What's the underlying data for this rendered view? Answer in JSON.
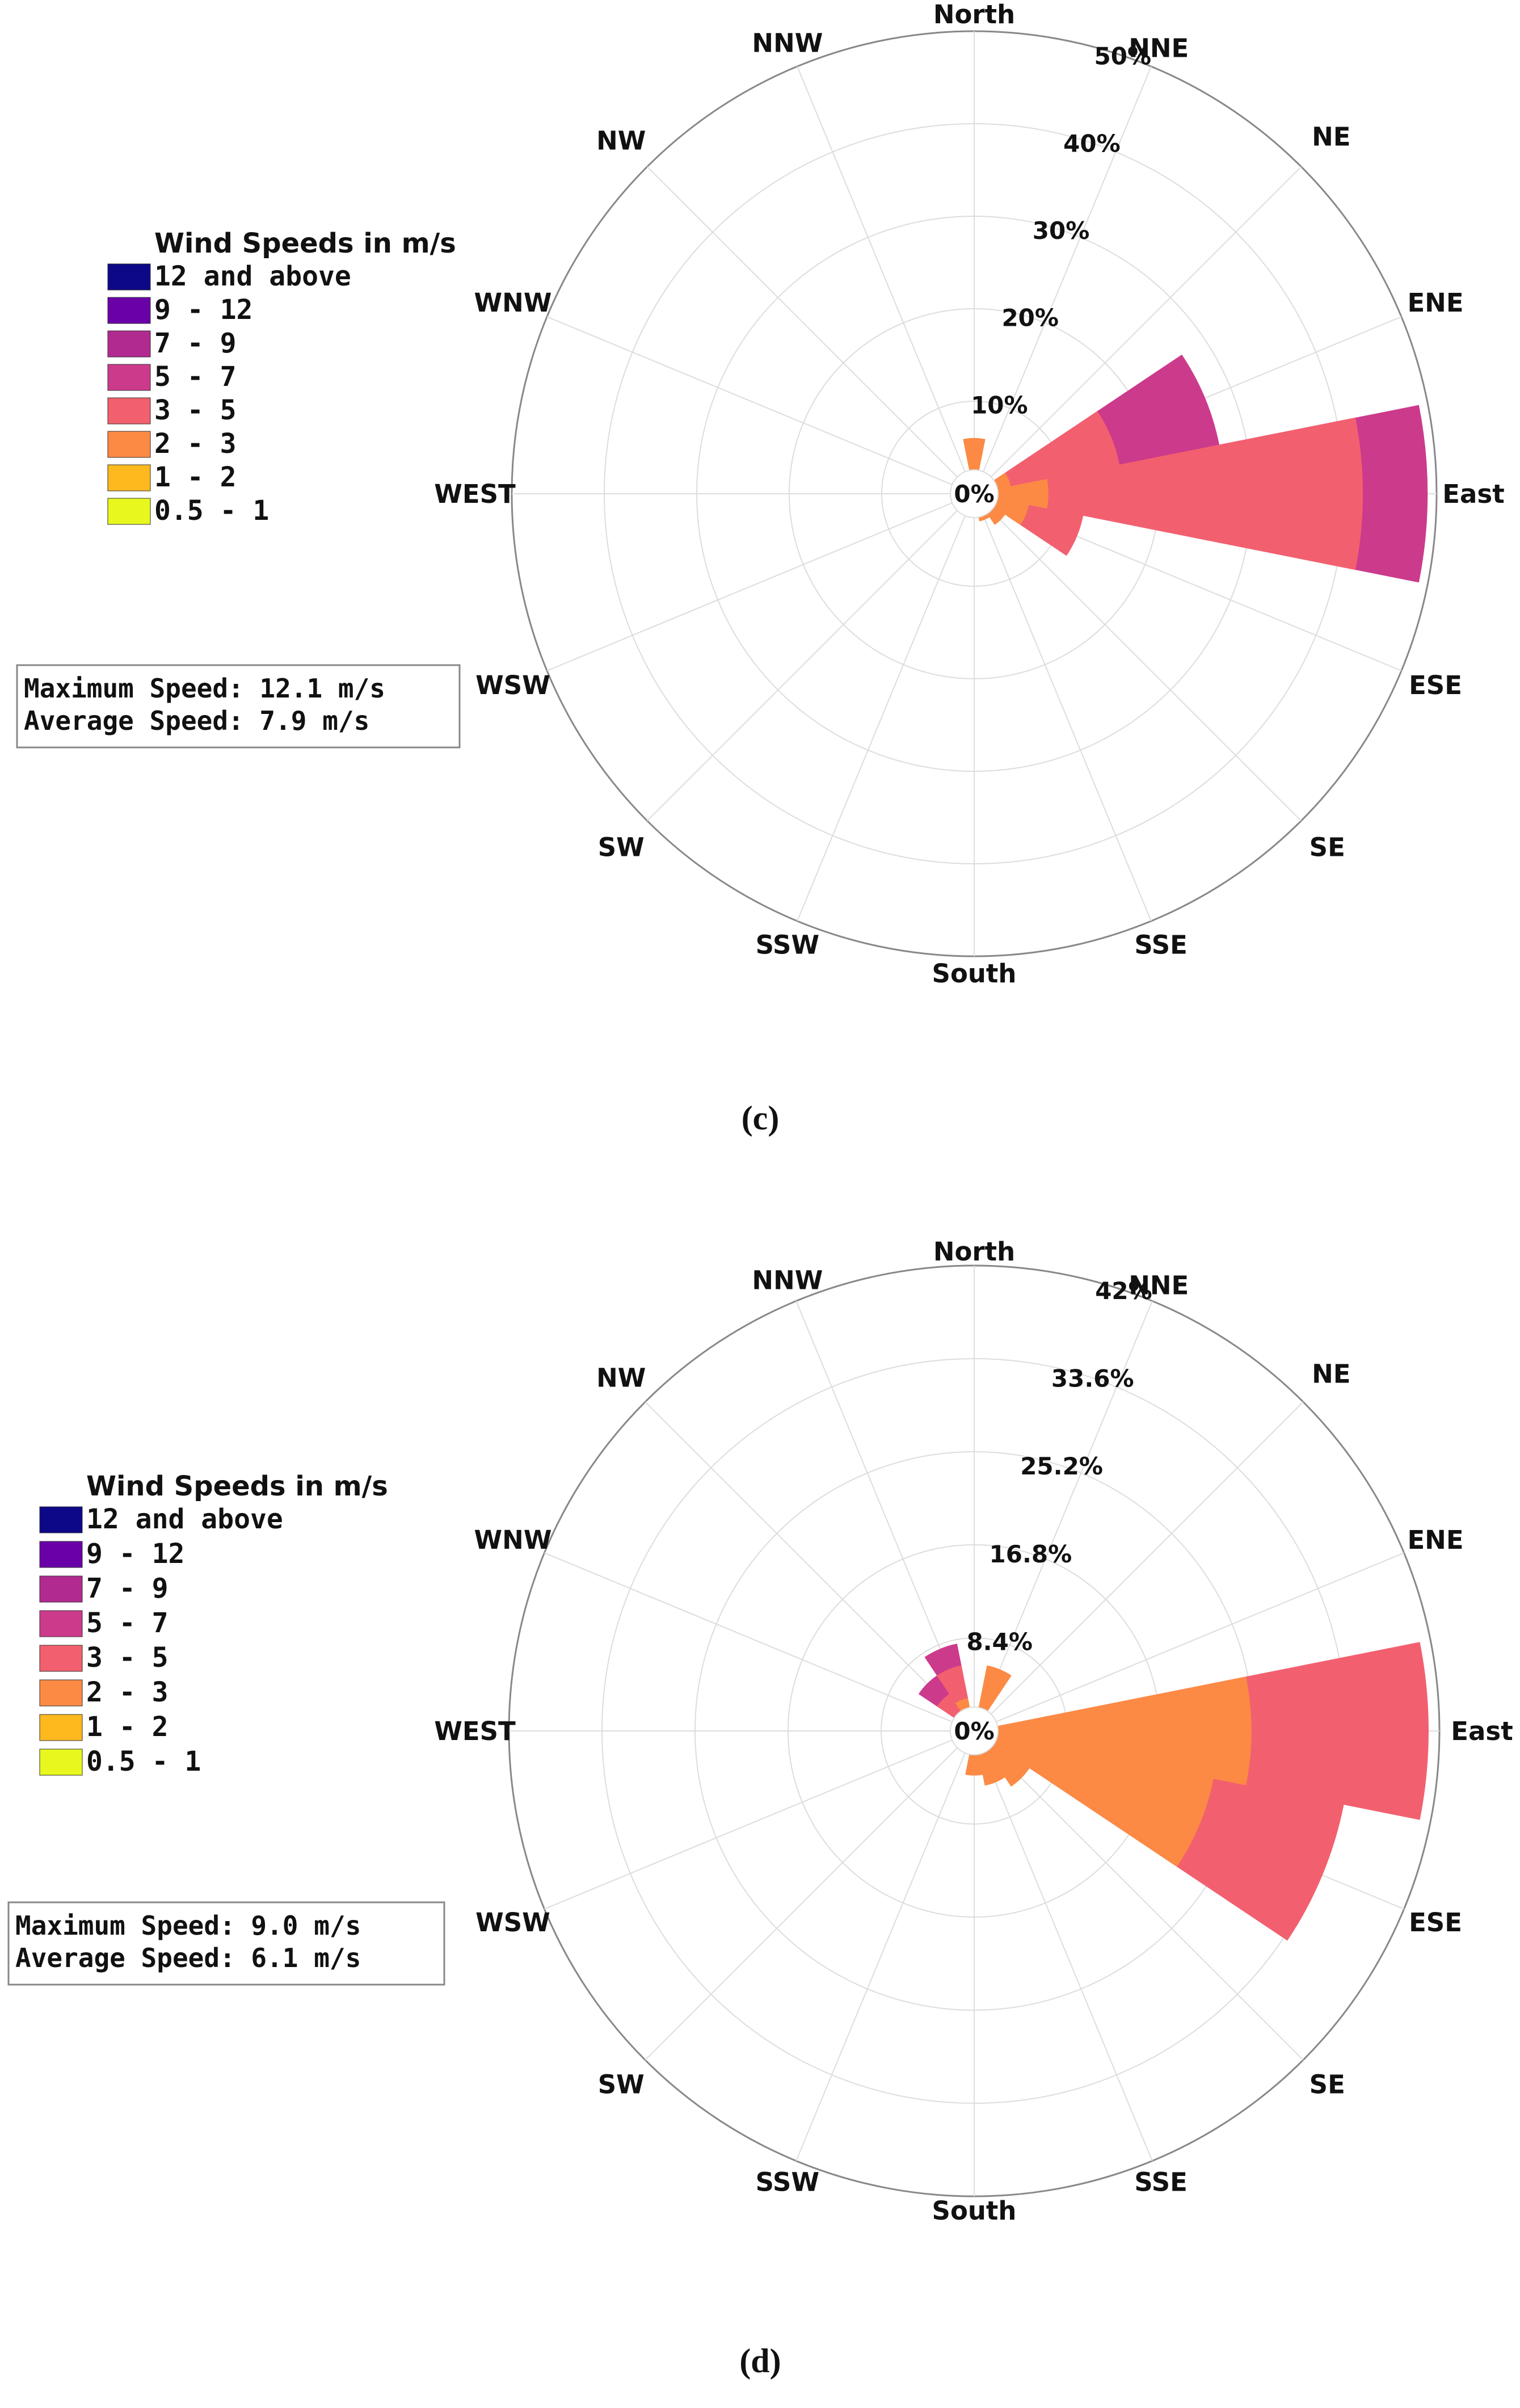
{
  "colors": {
    "12 and above": "#0d0887",
    "9 - 12": "#6a00a8",
    "7 - 9": "#b12a90",
    "5 - 7": "#cc3a8c",
    "3 - 5": "#f2606f",
    "2 - 3": "#fc8a44",
    "1 - 2": "#fdb91e",
    "0.5 - 1": "#e8f81e"
  },
  "chart_data": [
    {
      "type": "windrose",
      "panel_label": "(c)",
      "legend_title": "Wind Speeds in m/s",
      "legend_items": [
        "12 and above",
        "9 - 12",
        "7 - 9",
        "5 - 7",
        "3 - 5",
        "2 - 3",
        "1 - 2",
        "0.5 - 1"
      ],
      "stats": [
        "Maximum Speed: 12.1 m/s",
        "Average Speed: 7.9 m/s"
      ],
      "directions": [
        "North",
        "NNE",
        "NE",
        "ENE",
        "East",
        "ESE",
        "SE",
        "SSE",
        "South",
        "SSW",
        "SW",
        "WSW",
        "WEST",
        "WNW",
        "NW",
        "NNW"
      ],
      "rmax": 50,
      "rings": [
        10,
        20,
        30,
        40,
        50
      ],
      "ring_labels": [
        "10%",
        "20%",
        "30%",
        "40%",
        "50%"
      ],
      "center_label": "0%",
      "series": [
        {
          "name": "2 - 3",
          "values": [
            6,
            0,
            2,
            4,
            8,
            6,
            4,
            3,
            2,
            0,
            0,
            0,
            0,
            0,
            0,
            0
          ]
        },
        {
          "name": "3 - 5",
          "values": [
            0,
            0,
            0,
            16,
            42,
            12,
            0,
            0,
            0,
            0,
            0,
            0,
            0,
            0,
            0,
            0
          ]
        },
        {
          "name": "5 - 7",
          "values": [
            0,
            0,
            0,
            27,
            49,
            0,
            0,
            0,
            0,
            0,
            0,
            0,
            0,
            0,
            0,
            0
          ]
        }
      ]
    },
    {
      "type": "windrose",
      "panel_label": "(d)",
      "legend_title": "Wind Speeds in m/s",
      "legend_items": [
        "12 and above",
        "9 - 12",
        "7 - 9",
        "5 - 7",
        "3 - 5",
        "2 - 3",
        "1 - 2",
        "0.5 - 1"
      ],
      "stats": [
        "Maximum Speed: 9.0 m/s",
        "Average Speed: 6.1 m/s"
      ],
      "directions": [
        "North",
        "NNE",
        "NE",
        "ENE",
        "East",
        "ESE",
        "SE",
        "SSE",
        "South",
        "SSW",
        "SW",
        "WSW",
        "WEST",
        "WNW",
        "NW",
        "NNW"
      ],
      "rmax": 42,
      "rings": [
        8.4,
        16.8,
        25.2,
        33.6,
        42
      ],
      "ring_labels": [
        "8.4%",
        "16.8%",
        "25.2%",
        "33.6%",
        "42%"
      ],
      "center_label": "0%",
      "series": [
        {
          "name": "2 - 3",
          "values": [
            0,
            6,
            0,
            2,
            25,
            22,
            6,
            5,
            4,
            0,
            0,
            0,
            0,
            0,
            2,
            3
          ]
        },
        {
          "name": "3 - 5",
          "values": [
            0,
            0,
            0,
            0,
            41,
            34,
            0,
            0,
            0,
            0,
            0,
            0,
            0,
            0,
            4,
            6
          ]
        },
        {
          "name": "5 - 7",
          "values": [
            0,
            0,
            0,
            0,
            0,
            0,
            0,
            0,
            0,
            0,
            0,
            0,
            0,
            0,
            6,
            8
          ]
        }
      ]
    }
  ]
}
